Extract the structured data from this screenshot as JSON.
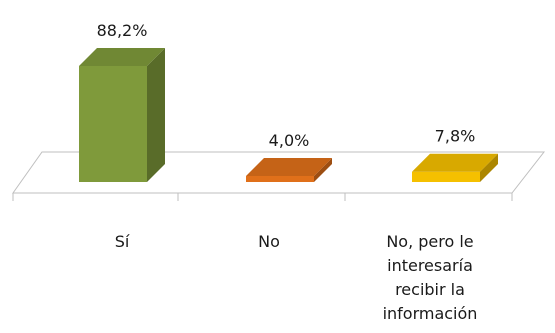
{
  "chart_data": {
    "type": "bar",
    "style": "3d-column",
    "categories": [
      "Sí",
      "No",
      "No, pero le interesaría recibir la información"
    ],
    "category_lines": [
      [
        "Sí"
      ],
      [
        "No"
      ],
      [
        "No, pero le",
        "interesaría",
        "recibir la",
        "información"
      ]
    ],
    "values": [
      88.2,
      4.0,
      7.8
    ],
    "value_labels": [
      "88,2%",
      "4,0%",
      "7,8%"
    ],
    "colors": [
      "#7f9a3b",
      "#e0701a",
      "#f5c000"
    ],
    "ylim": [
      0,
      100
    ],
    "legend": "none",
    "grid": false
  }
}
